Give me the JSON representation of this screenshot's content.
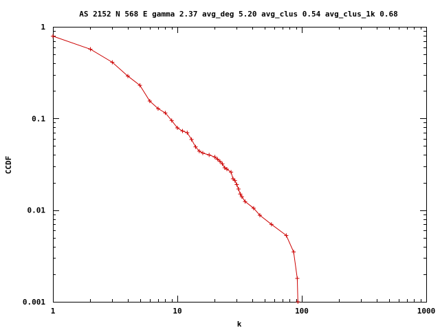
{
  "chart_data": {
    "type": "line",
    "title": "AS 2152 N 568 E gamma 2.37 avg_deg 5.20 avg_clus 0.54 avg_clus_1k 0.68",
    "xlabel": "k",
    "ylabel": "CCDF",
    "x_scale": "log",
    "y_scale": "log",
    "xlim": [
      1,
      1000
    ],
    "ylim": [
      0.001,
      1
    ],
    "x_ticks": [
      {
        "value": 1,
        "label": "1"
      },
      {
        "value": 10,
        "label": "10"
      },
      {
        "value": 100,
        "label": "100"
      },
      {
        "value": 1000,
        "label": "1000"
      }
    ],
    "y_ticks": [
      {
        "value": 1,
        "label": "1"
      },
      {
        "value": 0.1,
        "label": "0.1"
      },
      {
        "value": 0.01,
        "label": "0.01"
      },
      {
        "value": 0.001,
        "label": "0.001"
      }
    ],
    "grid": false,
    "legend": "none",
    "series_color": "#cc0000",
    "marker": "plus",
    "series": [
      {
        "x": [
          1,
          2,
          3,
          4,
          5,
          6,
          7,
          8,
          9,
          10,
          11,
          12,
          13,
          14,
          15,
          16,
          18,
          20,
          21,
          22,
          23,
          24,
          25,
          27,
          28,
          29,
          30,
          31,
          32,
          33,
          35,
          41,
          46,
          57,
          75,
          86,
          92,
          93
        ],
        "y": [
          0.79,
          0.57,
          0.41,
          0.29,
          0.23,
          0.155,
          0.128,
          0.115,
          0.095,
          0.079,
          0.073,
          0.07,
          0.059,
          0.049,
          0.044,
          0.042,
          0.04,
          0.038,
          0.036,
          0.034,
          0.032,
          0.029,
          0.028,
          0.026,
          0.022,
          0.021,
          0.019,
          0.017,
          0.015,
          0.014,
          0.0124,
          0.0105,
          0.0088,
          0.007,
          0.0053,
          0.0035,
          0.0018,
          0.001
        ]
      }
    ]
  }
}
